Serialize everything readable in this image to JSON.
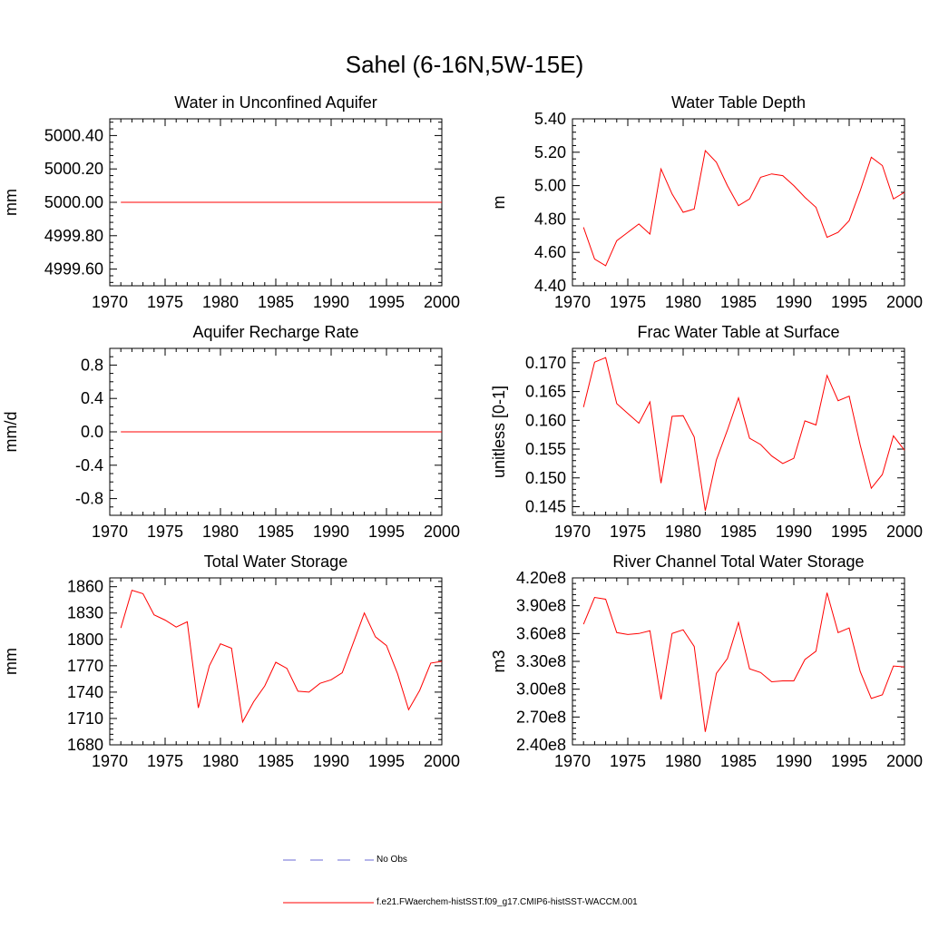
{
  "figure": {
    "title": "Sahel (6-16N,5W-15E)"
  },
  "legend": {
    "entries": [
      {
        "label": "No Obs",
        "color": "#6b6bd6",
        "dash": "dashed"
      },
      {
        "label": "f.e21.FWaerchem-histSST.f09_g17.CMIP6-histSST-WACCM.001",
        "color": "#ff0000",
        "dash": "solid"
      }
    ]
  },
  "chart_data": [
    {
      "type": "line",
      "title": "Water in Unconfined Aquifer",
      "ylabel": "mm",
      "xlabel": "",
      "xlim": [
        1970,
        2000
      ],
      "ylim": [
        4999.5,
        5000.5
      ],
      "xticks": [
        1970,
        1975,
        1980,
        1985,
        1990,
        1995,
        2000
      ],
      "xtick_labels": [
        "1970",
        "1975",
        "1980",
        "1985",
        "1990",
        "1995",
        "2000"
      ],
      "yticks": [
        4999.6,
        4999.8,
        5000.0,
        5000.2,
        5000.4
      ],
      "ytick_labels": [
        "4999.60",
        "4999.80",
        "5000.00",
        "5000.20",
        "5000.40"
      ],
      "y_minor_step": 0.04,
      "grid": false,
      "series": [
        {
          "color": "#ff0000",
          "x": [
            1971,
            2000
          ],
          "y": [
            5000.0,
            5000.0
          ]
        }
      ]
    },
    {
      "type": "line",
      "title": "Water Table Depth",
      "ylabel": "m",
      "xlabel": "",
      "xlim": [
        1970,
        2000
      ],
      "ylim": [
        4.4,
        5.4
      ],
      "xticks": [
        1970,
        1975,
        1980,
        1985,
        1990,
        1995,
        2000
      ],
      "xtick_labels": [
        "1970",
        "1975",
        "1980",
        "1985",
        "1990",
        "1995",
        "2000"
      ],
      "yticks": [
        4.4,
        4.6,
        4.8,
        5.0,
        5.2,
        5.4
      ],
      "ytick_labels": [
        "4.40",
        "4.60",
        "4.80",
        "5.00",
        "5.20",
        "5.40"
      ],
      "y_minor_step": 0.04,
      "grid": false,
      "series": [
        {
          "color": "#ff0000",
          "x": [
            1971,
            1972,
            1973,
            1974,
            1975,
            1976,
            1977,
            1978,
            1979,
            1980,
            1981,
            1982,
            1983,
            1984,
            1985,
            1986,
            1987,
            1988,
            1989,
            1990,
            1991,
            1992,
            1993,
            1994,
            1995,
            1996,
            1997,
            1998,
            1999,
            2000
          ],
          "y": [
            4.75,
            4.56,
            4.52,
            4.67,
            4.72,
            4.77,
            4.71,
            5.1,
            4.95,
            4.84,
            4.86,
            5.21,
            5.14,
            5.0,
            4.88,
            4.92,
            5.05,
            5.07,
            5.06,
            5.0,
            4.93,
            4.87,
            4.69,
            4.72,
            4.79,
            4.97,
            5.17,
            5.12,
            4.92,
            4.96
          ]
        }
      ]
    },
    {
      "type": "line",
      "title": "Aquifer Recharge Rate",
      "ylabel": "mm/d",
      "xlabel": "",
      "xlim": [
        1970,
        2000
      ],
      "ylim": [
        -1.0,
        1.0
      ],
      "xticks": [
        1970,
        1975,
        1980,
        1985,
        1990,
        1995,
        2000
      ],
      "xtick_labels": [
        "1970",
        "1975",
        "1980",
        "1985",
        "1990",
        "1995",
        "2000"
      ],
      "yticks": [
        -0.8,
        -0.4,
        0.0,
        0.4,
        0.8
      ],
      "ytick_labels": [
        "-0.8",
        "-0.4",
        "0.0",
        "0.4",
        "0.8"
      ],
      "y_minor_step": 0.1,
      "grid": false,
      "series": [
        {
          "color": "#ff0000",
          "x": [
            1971,
            2000
          ],
          "y": [
            0.0,
            0.0
          ]
        }
      ]
    },
    {
      "type": "line",
      "title": "Frac Water Table at Surface",
      "ylabel": "unitless [0-1]",
      "xlabel": "",
      "xlim": [
        1970,
        2000
      ],
      "ylim": [
        0.1435,
        0.1725
      ],
      "xticks": [
        1970,
        1975,
        1980,
        1985,
        1990,
        1995,
        2000
      ],
      "xtick_labels": [
        "1970",
        "1975",
        "1980",
        "1985",
        "1990",
        "1995",
        "2000"
      ],
      "yticks": [
        0.145,
        0.15,
        0.155,
        0.16,
        0.165,
        0.17
      ],
      "ytick_labels": [
        "0.145",
        "0.150",
        "0.155",
        "0.160",
        "0.165",
        "0.170"
      ],
      "y_minor_step": 0.001,
      "grid": false,
      "series": [
        {
          "color": "#ff0000",
          "x": [
            1971,
            1972,
            1973,
            1974,
            1975,
            1976,
            1977,
            1978,
            1979,
            1980,
            1981,
            1982,
            1983,
            1984,
            1985,
            1986,
            1987,
            1988,
            1989,
            1990,
            1991,
            1992,
            1993,
            1994,
            1995,
            1996,
            1997,
            1998,
            1999,
            2000
          ],
          "y": [
            0.1623,
            0.1701,
            0.1709,
            0.1629,
            0.1612,
            0.1595,
            0.1632,
            0.1491,
            0.1607,
            0.1608,
            0.1571,
            0.1443,
            0.1531,
            0.1583,
            0.1639,
            0.1569,
            0.1558,
            0.1538,
            0.1525,
            0.1534,
            0.1599,
            0.1592,
            0.1678,
            0.1634,
            0.1642,
            0.1557,
            0.1482,
            0.1506,
            0.1573,
            0.1548
          ]
        }
      ]
    },
    {
      "type": "line",
      "title": "Total Water Storage",
      "ylabel": "mm",
      "xlabel": "",
      "xlim": [
        1970,
        2000
      ],
      "ylim": [
        1680,
        1870
      ],
      "xticks": [
        1970,
        1975,
        1980,
        1985,
        1990,
        1995,
        2000
      ],
      "xtick_labels": [
        "1970",
        "1975",
        "1980",
        "1985",
        "1990",
        "1995",
        "2000"
      ],
      "yticks": [
        1680,
        1710,
        1740,
        1770,
        1800,
        1830,
        1860
      ],
      "ytick_labels": [
        "1680",
        "1710",
        "1740",
        "1770",
        "1800",
        "1830",
        "1860"
      ],
      "y_minor_step": 6,
      "grid": false,
      "series": [
        {
          "color": "#ff0000",
          "x": [
            1971,
            1972,
            1973,
            1974,
            1975,
            1976,
            1977,
            1978,
            1979,
            1980,
            1981,
            1982,
            1983,
            1984,
            1985,
            1986,
            1987,
            1988,
            1989,
            1990,
            1991,
            1992,
            1993,
            1994,
            1995,
            1996,
            1997,
            1998,
            1999,
            2000
          ],
          "y": [
            1813,
            1856,
            1852,
            1828,
            1822,
            1814,
            1820,
            1722,
            1770,
            1795,
            1790,
            1706,
            1729,
            1747,
            1774,
            1767,
            1741,
            1740,
            1750,
            1754,
            1762,
            1796,
            1830,
            1803,
            1793,
            1761,
            1720,
            1742,
            1773,
            1775
          ]
        }
      ]
    },
    {
      "type": "line",
      "title": "River Channel Total Water Storage",
      "ylabel": "m3",
      "xlabel": "",
      "xlim": [
        1970,
        2000
      ],
      "ylim": [
        240000000.0,
        420000000.0
      ],
      "xticks": [
        1970,
        1975,
        1980,
        1985,
        1990,
        1995,
        2000
      ],
      "xtick_labels": [
        "1970",
        "1975",
        "1980",
        "1985",
        "1990",
        "1995",
        "2000"
      ],
      "yticks": [
        240000000.0,
        270000000.0,
        300000000.0,
        330000000.0,
        360000000.0,
        390000000.0,
        420000000.0
      ],
      "ytick_labels": [
        "2.40e8",
        "2.70e8",
        "3.00e8",
        "3.30e8",
        "3.60e8",
        "3.90e8",
        "4.20e8"
      ],
      "y_minor_step": 6000000,
      "grid": false,
      "series": [
        {
          "color": "#ff0000",
          "x": [
            1971,
            1972,
            1973,
            1974,
            1975,
            1976,
            1977,
            1978,
            1979,
            1980,
            1981,
            1982,
            1983,
            1984,
            1985,
            1986,
            1987,
            1988,
            1989,
            1990,
            1991,
            1992,
            1993,
            1994,
            1995,
            1996,
            1997,
            1998,
            1999,
            2000
          ],
          "y": [
            370000000.0,
            399000000.0,
            397000000.0,
            361000000.0,
            359000000.0,
            360000000.0,
            363000000.0,
            289000000.0,
            360000000.0,
            364000000.0,
            346000000.0,
            254000000.0,
            317000000.0,
            333000000.0,
            372000000.0,
            322000000.0,
            318000000.0,
            308000000.0,
            309000000.0,
            309000000.0,
            332000000.0,
            341000000.0,
            404000000.0,
            361000000.0,
            366000000.0,
            319000000.0,
            290000000.0,
            294000000.0,
            325000000.0,
            324000000.0
          ]
        }
      ]
    }
  ]
}
